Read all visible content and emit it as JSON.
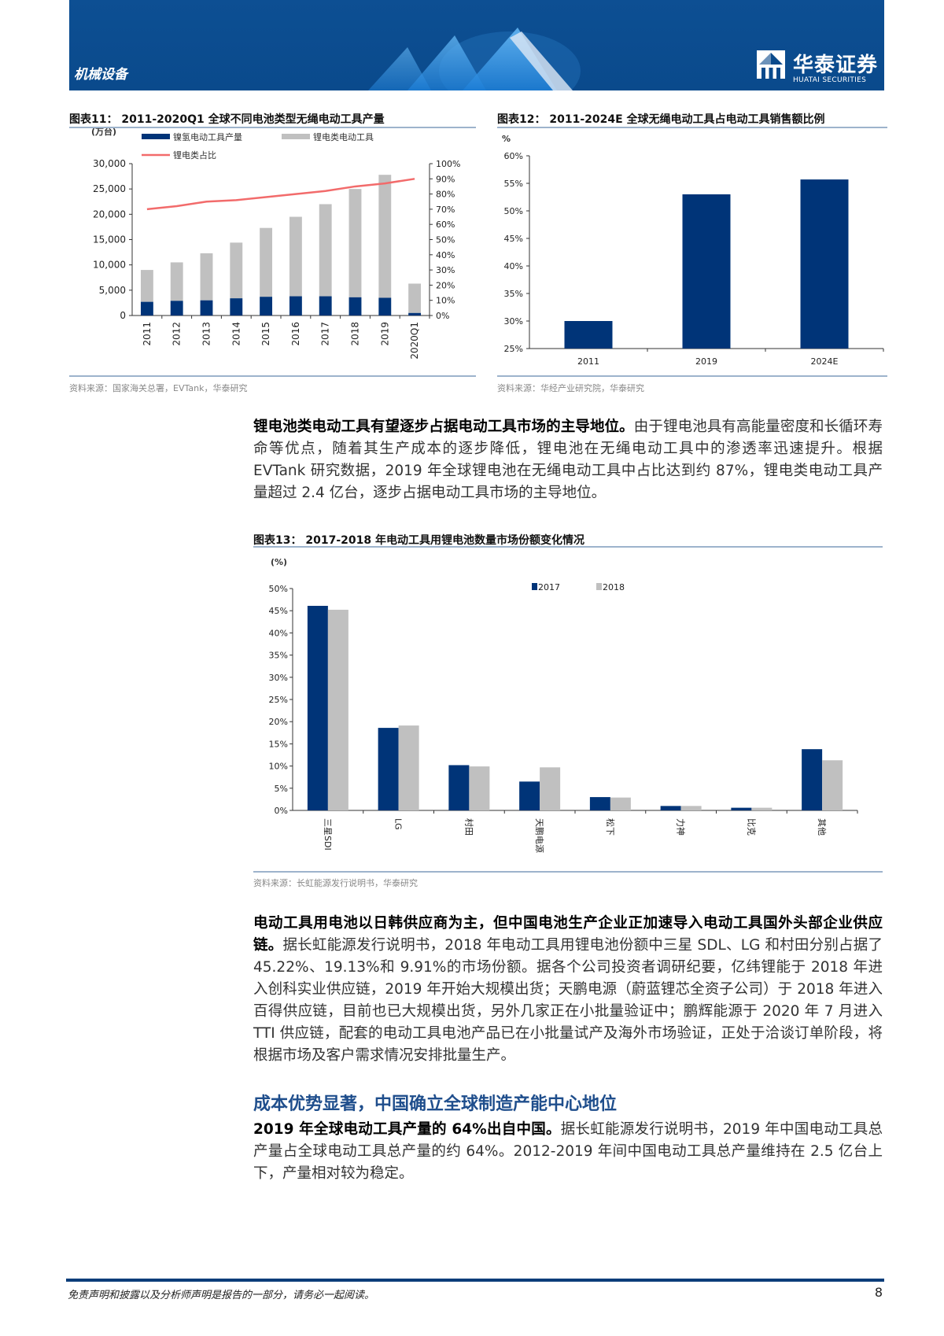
{
  "header": {
    "section": "机械设备",
    "logo_cn": "华泰证券",
    "logo_en": "HUATAI SECURITIES",
    "bg_color": "#0a4a8c"
  },
  "figures": {
    "fig11": {
      "title": "图表11：  2011-2020Q1 全球不同电池类型无绳电动工具产量",
      "source": "资料来源：国家海关总署，EVTank，华泰研究"
    },
    "fig12": {
      "title": "图表12：  2011-2024E 全球无绳电动工具占电动工具销售额比例",
      "source": "资料来源：华经产业研究院，华泰研究"
    },
    "fig13": {
      "title": "图表13：  2017-2018 年电动工具用锂电池数量市场份额变化情况",
      "source": "资料来源：长虹能源发行说明书，华泰研究"
    }
  },
  "chart_data": [
    {
      "type": "bar",
      "stacked": true,
      "ylabel": "(万台)",
      "categories": [
        "2011",
        "2012",
        "2013",
        "2014",
        "2015",
        "2016",
        "2017",
        "2018",
        "2019",
        "2020Q1"
      ],
      "ylim": [
        0,
        30000
      ],
      "yticks": [
        "0",
        "5,000",
        "10,000",
        "15,000",
        "20,000",
        "25,000",
        "30,000"
      ],
      "y2lim": [
        0,
        100
      ],
      "y2ticks": [
        "0%",
        "10%",
        "20%",
        "30%",
        "40%",
        "50%",
        "60%",
        "70%",
        "80%",
        "90%",
        "100%"
      ],
      "series": [
        {
          "name": "镍氢电动工具产量",
          "type": "bar",
          "color": "#003478",
          "values": [
            2700,
            2900,
            3000,
            3400,
            3700,
            3800,
            3800,
            3600,
            3500,
            500
          ]
        },
        {
          "name": "锂电类电动工具",
          "type": "bar",
          "color": "#c0c0c0",
          "values": [
            6300,
            7600,
            9300,
            11000,
            13600,
            15700,
            18200,
            21400,
            24300,
            5800
          ]
        },
        {
          "name": "锂电类占比",
          "type": "line",
          "axis": "right",
          "color": "#f26b6b",
          "values": [
            70,
            72,
            75,
            76,
            78,
            80,
            82,
            85,
            87,
            90
          ]
        }
      ],
      "legend": "top"
    },
    {
      "type": "bar",
      "ylabel": "%",
      "categories": [
        "2011",
        "2019",
        "2024E"
      ],
      "values": [
        30,
        53,
        55.7
      ],
      "ylim": [
        25,
        60
      ],
      "yticks": [
        "25%",
        "30%",
        "35%",
        "40%",
        "45%",
        "50%",
        "55%",
        "60%"
      ],
      "color": "#003478"
    },
    {
      "type": "bar",
      "ylabel": "(%)",
      "categories": [
        "三星SDI",
        "LG",
        "村田",
        "天鹏电源",
        "松下",
        "力神",
        "比克",
        "其他"
      ],
      "ylim": [
        0,
        50
      ],
      "yticks": [
        "0%",
        "5%",
        "10%",
        "15%",
        "20%",
        "25%",
        "30%",
        "35%",
        "40%",
        "45%",
        "50%"
      ],
      "series": [
        {
          "name": "2017",
          "color": "#003478",
          "values": [
            46.1,
            18.6,
            10.2,
            6.5,
            3.0,
            1.0,
            0.6,
            13.8
          ]
        },
        {
          "name": "2018",
          "color": "#c0c0c0",
          "values": [
            45.22,
            19.13,
            9.91,
            9.7,
            2.9,
            1.0,
            0.6,
            11.3
          ]
        }
      ],
      "legend": "top"
    }
  ],
  "body": {
    "p1_bold": "锂电池类电动工具有望逐步占据电动工具市场的主导地位。",
    "p1_text": "由于锂电池具有高能量密度和长循环寿命等优点，随着其生产成本的逐步降低，锂电池在无绳电动工具中的渗透率迅速提升。根据 EVTank 研究数据，2019 年全球锂电池在无绳电动工具中占比达到约 87%，锂电类电动工具产量超过 2.4 亿台，逐步占据电动工具市场的主导地位。",
    "p2_bold": "电动工具用电池以日韩供应商为主，但中国电池生产企业正加速导入电动工具国外头部企业供应链。",
    "p2_text": "据长虹能源发行说明书，2018 年电动工具用锂电池份额中三星 SDL、LG 和村田分别占据了 45.22%、19.13%和 9.91%的市场份额。据各个公司投资者调研纪要，亿纬锂能于 2018 年进入创科实业供应链，2019 年开始大规模出货；天鹏电源（蔚蓝锂芯全资子公司）于 2018 年进入百得供应链，目前也已大规模出货，另外几家正在小批量验证中；鹏辉能源于 2020 年 7 月进入 TTI 供应链，配套的电动工具电池产品已在小批量试产及海外市场验证，正处于洽谈订单阶段，将根据市场及客户需求情况安排批量生产。",
    "heading": "成本优势显著，中国确立全球制造产能中心地位",
    "heading_color": "#1f4e8c",
    "p3_bold": "2019 年全球电动工具产量的 64%出自中国。",
    "p3_text": "据长虹能源发行说明书，2019 年中国电动工具总产量占全球电动工具总产量的约 64%。2012-2019 年间中国电动工具总产量维持在 2.5 亿台上下，产量相对较为稳定。"
  },
  "footer": {
    "disclaimer": "免责声明和披露以及分析师声明是报告的一部分，请务必一起阅读。",
    "page": "8"
  }
}
